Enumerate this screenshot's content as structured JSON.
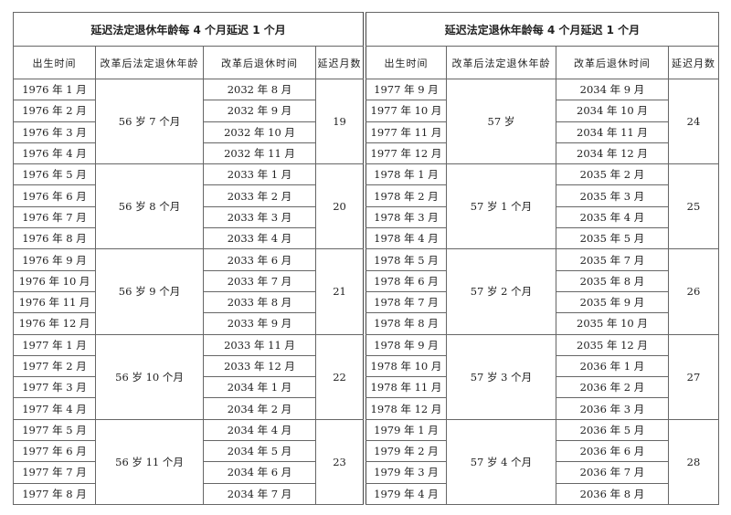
{
  "tables": [
    {
      "title": "延迟法定退休年龄每 4 个月延迟 1 个月",
      "headers": [
        "出生时间",
        "改革后法定退休年龄",
        "改革后退休时间",
        "延迟月数"
      ],
      "groups": [
        {
          "age": "56 岁 7 个月",
          "delay": "19",
          "rows": [
            [
              "1976 年 1 月",
              "2032 年 8 月"
            ],
            [
              "1976 年 2 月",
              "2032 年 9 月"
            ],
            [
              "1976 年 3 月",
              "2032 年 10 月"
            ],
            [
              "1976 年 4 月",
              "2032 年 11 月"
            ]
          ]
        },
        {
          "age": "56 岁 8 个月",
          "delay": "20",
          "rows": [
            [
              "1976 年 5 月",
              "2033 年 1 月"
            ],
            [
              "1976 年 6 月",
              "2033 年 2 月"
            ],
            [
              "1976 年 7 月",
              "2033 年 3 月"
            ],
            [
              "1976 年 8 月",
              "2033 年 4 月"
            ]
          ]
        },
        {
          "age": "56 岁 9 个月",
          "delay": "21",
          "rows": [
            [
              "1976 年 9 月",
              "2033 年 6 月"
            ],
            [
              "1976 年 10 月",
              "2033 年 7 月"
            ],
            [
              "1976 年 11 月",
              "2033 年 8 月"
            ],
            [
              "1976 年 12 月",
              "2033 年 9 月"
            ]
          ]
        },
        {
          "age": "56 岁 10 个月",
          "delay": "22",
          "rows": [
            [
              "1977 年 1 月",
              "2033 年 11 月"
            ],
            [
              "1977 年 2 月",
              "2033 年 12 月"
            ],
            [
              "1977 年 3 月",
              "2034 年 1 月"
            ],
            [
              "1977 年 4 月",
              "2034 年 2 月"
            ]
          ]
        },
        {
          "age": "56 岁 11 个月",
          "delay": "23",
          "rows": [
            [
              "1977 年 5 月",
              "2034 年 4 月"
            ],
            [
              "1977 年 6 月",
              "2034 年 5 月"
            ],
            [
              "1977 年 7 月",
              "2034 年 6 月"
            ],
            [
              "1977 年 8 月",
              "2034 年 7 月"
            ]
          ]
        }
      ]
    },
    {
      "title": "延迟法定退休年龄每 4 个月延迟 1 个月",
      "headers": [
        "出生时间",
        "改革后法定退休年龄",
        "改革后退休时间",
        "延迟月数"
      ],
      "groups": [
        {
          "age": "57 岁",
          "delay": "24",
          "rows": [
            [
              "1977 年 9 月",
              "2034 年 9 月"
            ],
            [
              "1977 年 10 月",
              "2034 年 10 月"
            ],
            [
              "1977 年 11 月",
              "2034 年 11 月"
            ],
            [
              "1977 年 12 月",
              "2034 年 12 月"
            ]
          ]
        },
        {
          "age": "57 岁 1 个月",
          "delay": "25",
          "rows": [
            [
              "1978 年 1 月",
              "2035 年 2 月"
            ],
            [
              "1978 年 2 月",
              "2035 年 3 月"
            ],
            [
              "1978 年 3 月",
              "2035 年 4 月"
            ],
            [
              "1978 年 4 月",
              "2035 年 5 月"
            ]
          ]
        },
        {
          "age": "57 岁 2 个月",
          "delay": "26",
          "rows": [
            [
              "1978 年 5 月",
              "2035 年 7 月"
            ],
            [
              "1978 年 6 月",
              "2035 年 8 月"
            ],
            [
              "1978 年 7 月",
              "2035 年 9 月"
            ],
            [
              "1978 年 8 月",
              "2035 年 10 月"
            ]
          ]
        },
        {
          "age": "57 岁 3 个月",
          "delay": "27",
          "rows": [
            [
              "1978 年 9 月",
              "2035 年 12 月"
            ],
            [
              "1978 年 10 月",
              "2036 年 1 月"
            ],
            [
              "1978 年 11 月",
              "2036 年 2 月"
            ],
            [
              "1978 年 12 月",
              "2036 年 3 月"
            ]
          ]
        },
        {
          "age": "57 岁 4 个月",
          "delay": "28",
          "rows": [
            [
              "1979 年 1 月",
              "2036 年 5 月"
            ],
            [
              "1979 年 2 月",
              "2036 年 6 月"
            ],
            [
              "1979 年 3 月",
              "2036 年 7 月"
            ],
            [
              "1979 年 4 月",
              "2036 年 8 月"
            ]
          ]
        }
      ]
    }
  ]
}
